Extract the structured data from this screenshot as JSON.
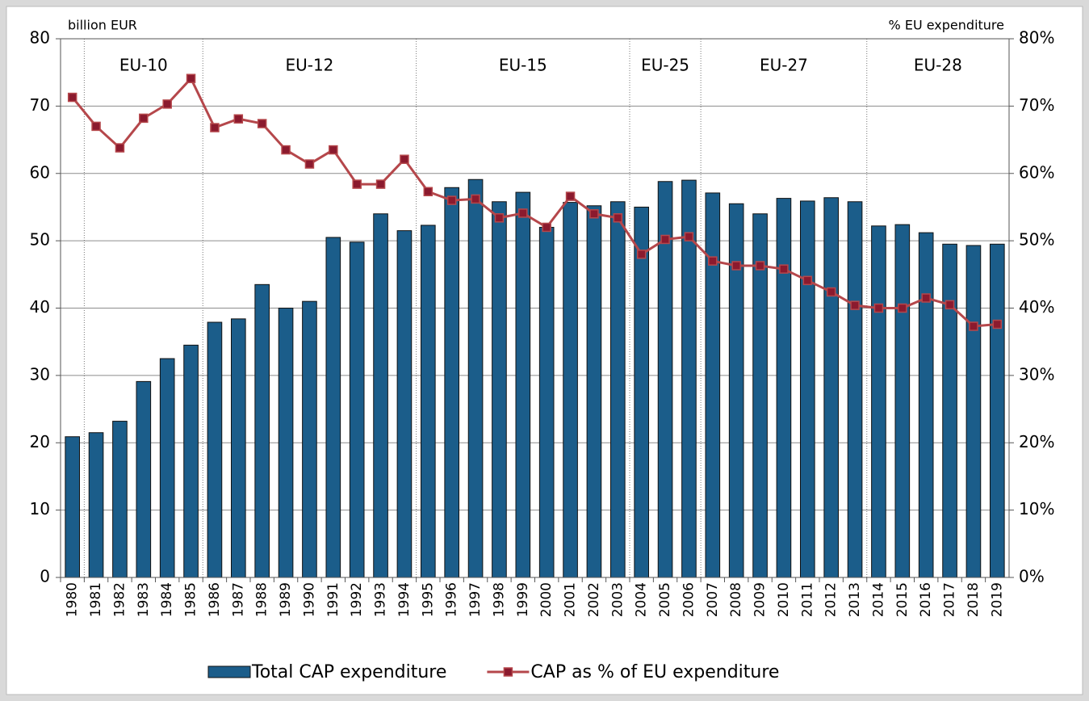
{
  "chart_data": {
    "type": "bar_line",
    "y_label": "billion EUR",
    "y2_label": "% EU expenditure",
    "categories": [
      "1980",
      "1981",
      "1982",
      "1983",
      "1984",
      "1985",
      "1986",
      "1987",
      "1988",
      "1989",
      "1990",
      "1991",
      "1992",
      "1993",
      "1994",
      "1995",
      "1996",
      "1997",
      "1998",
      "1999",
      "2000",
      "2001",
      "2002",
      "2003",
      "2004",
      "2005",
      "2006",
      "2007",
      "2008",
      "2009",
      "2010",
      "2011",
      "2012",
      "2013",
      "2014",
      "2015",
      "2016",
      "2017",
      "2018",
      "2019"
    ],
    "series": [
      {
        "name": "Total CAP expenditure",
        "type": "bar",
        "color": "#1b5d8a",
        "values": [
          20.9,
          21.5,
          23.2,
          29.1,
          32.5,
          34.5,
          37.9,
          38.4,
          43.5,
          40.0,
          41.0,
          50.5,
          49.8,
          54.0,
          51.5,
          52.3,
          57.9,
          59.1,
          55.8,
          57.2,
          52.0,
          55.7,
          55.2,
          55.8,
          55.0,
          58.8,
          59.0,
          57.1,
          55.5,
          54.0,
          56.3,
          55.9,
          56.4,
          55.8,
          52.2,
          52.4,
          51.2,
          49.5,
          49.3,
          49.5
        ]
      },
      {
        "name": "CAP as % of EU expenditure",
        "type": "line",
        "axis": "y2",
        "color": "#b5474b",
        "marker_color": "#8b1a2e",
        "values": [
          71.3,
          67.0,
          63.8,
          68.2,
          70.3,
          74.1,
          66.8,
          68.1,
          67.4,
          63.5,
          61.4,
          63.5,
          58.4,
          58.4,
          62.1,
          57.3,
          56.0,
          56.2,
          53.4,
          54.1,
          52.0,
          56.6,
          54.0,
          53.4,
          48.0,
          50.2,
          50.6,
          47.0,
          46.3,
          46.3,
          45.8,
          44.1,
          42.4,
          40.4,
          40.0,
          40.0,
          41.5,
          40.5,
          37.3,
          37.6
        ]
      }
    ],
    "periods": [
      {
        "name": "EU-10",
        "start": "1981",
        "end": "1985"
      },
      {
        "name": "EU-12",
        "start": "1986",
        "end": "1994"
      },
      {
        "name": "EU-15",
        "start": "1995",
        "end": "2003"
      },
      {
        "name": "EU-25",
        "start": "2004",
        "end": "2006"
      },
      {
        "name": "EU-27",
        "start": "2007",
        "end": "2013"
      },
      {
        "name": "EU-28",
        "start": "2014",
        "end": "2019"
      }
    ],
    "ylim": [
      0,
      80
    ],
    "yticks": [
      0,
      10,
      20,
      30,
      40,
      50,
      60,
      70,
      80
    ],
    "y2lim": [
      0,
      80
    ],
    "y2ticks": [
      {
        "value": 0,
        "label": "0%"
      },
      {
        "value": 10,
        "label": "10%"
      },
      {
        "value": 20,
        "label": "20%"
      },
      {
        "value": 30,
        "label": "30%"
      },
      {
        "value": 40,
        "label": "40%"
      },
      {
        "value": 50,
        "label": "50%"
      },
      {
        "value": 60,
        "label": "60%"
      },
      {
        "value": 70,
        "label": "70%"
      },
      {
        "value": 80,
        "label": "80%"
      }
    ],
    "grid": true,
    "legend": "bottom"
  }
}
